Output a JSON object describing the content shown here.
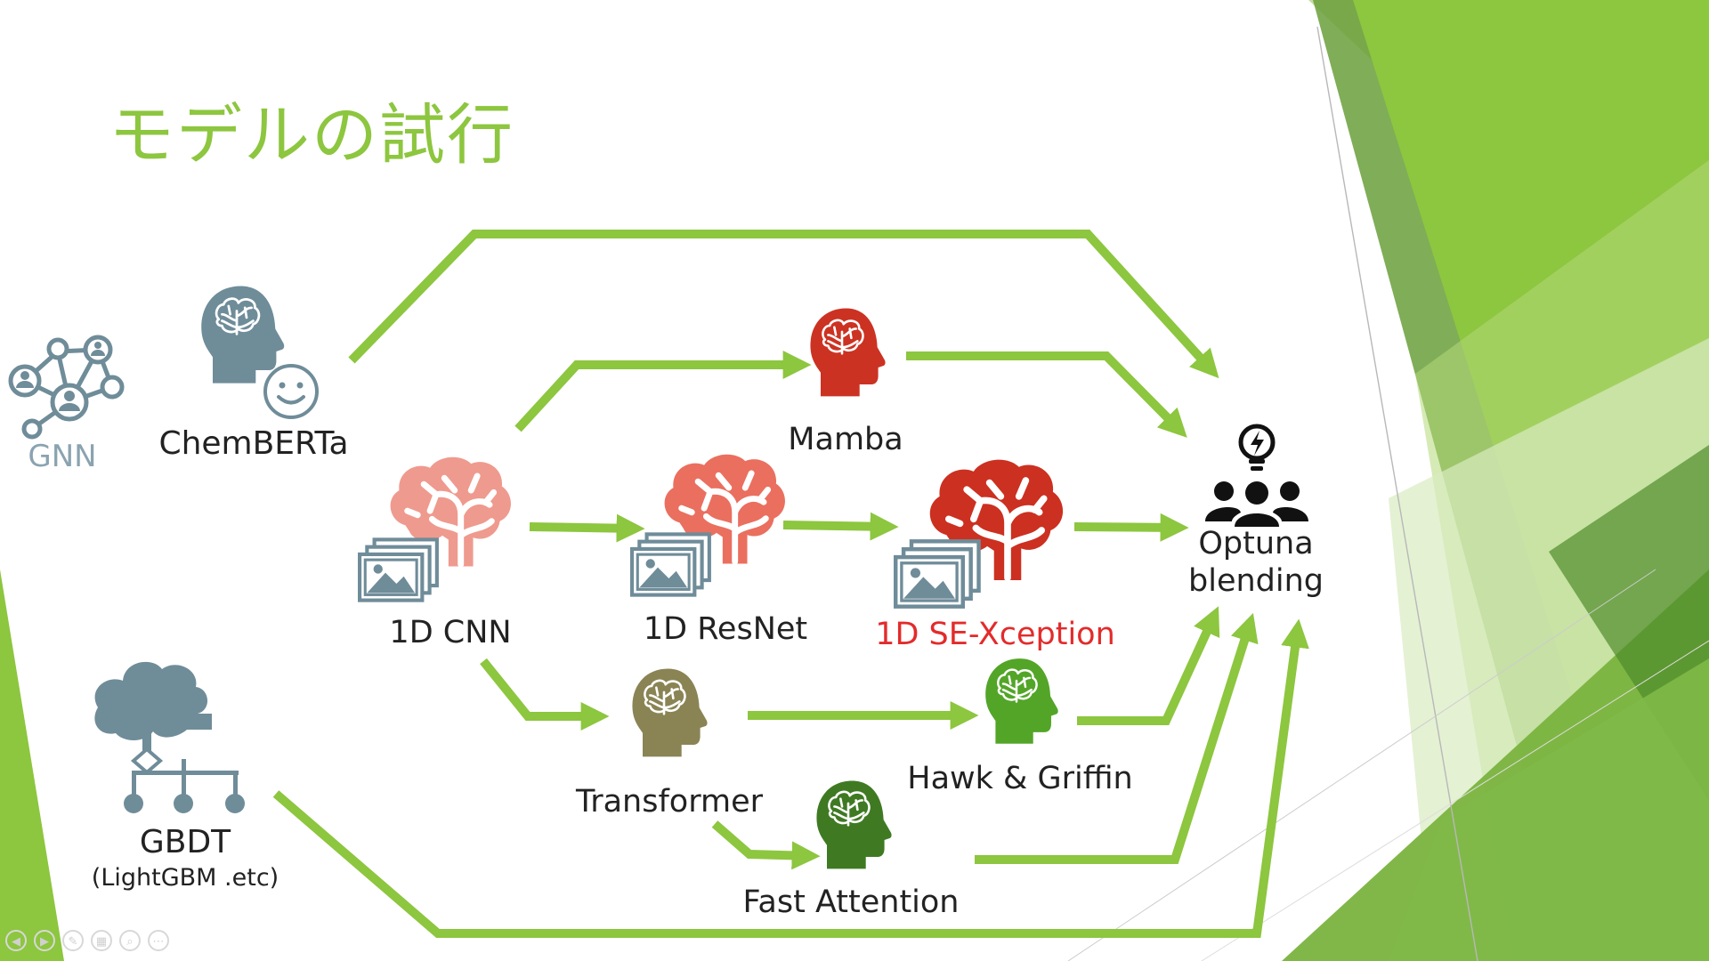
{
  "slide": {
    "title": "モデルの試行",
    "accent_color": "#8dc63f",
    "arrow_color": "#8dc63f"
  },
  "nodes": {
    "gnn": {
      "label": "GNN",
      "color": "#8ba3b0",
      "icon": "network-people-icon"
    },
    "chemberta": {
      "label": "ChemBERTa",
      "color": "#222222",
      "icon": "head-brain-smile-icon"
    },
    "gbdt": {
      "label": "GBDT",
      "sublabel": "(LightGBM .etc)",
      "color": "#222222",
      "icon": "decision-tree-icon"
    },
    "cnn1d": {
      "label": "1D CNN",
      "color": "#222222",
      "icon": "brain-images-icon"
    },
    "resnet1d": {
      "label": "1D ResNet",
      "color": "#222222",
      "icon": "brain-images-icon"
    },
    "sexception": {
      "label": "1D SE-Xception",
      "color": "#e32b2b",
      "icon": "brain-images-icon"
    },
    "mamba": {
      "label": "Mamba",
      "color": "#222222",
      "icon": "head-brain-icon"
    },
    "transformer": {
      "label": "Transformer",
      "color": "#222222",
      "icon": "head-brain-icon"
    },
    "hawk": {
      "label": "Hawk & Griffin",
      "color": "#222222",
      "icon": "head-brain-icon"
    },
    "fastattn": {
      "label": "Fast Attention",
      "color": "#222222",
      "icon": "head-brain-icon"
    },
    "optuna": {
      "label_line1": "Optuna",
      "label_line2": "blending",
      "color": "#222222",
      "icon": "team-idea-icon"
    }
  },
  "icon_colors": {
    "slate": "#6f8c99",
    "brain_light": "#ef9a8e",
    "brain_mid": "#ea6f5f",
    "brain_dark": "#cc3020",
    "mamba": "#cc3222",
    "transformer": "#8a8455",
    "hawk": "#53a528",
    "fastattn": "#3f7a23"
  },
  "nav_icons": [
    "prev-icon",
    "next-icon",
    "pen-icon",
    "slides-icon",
    "zoom-icon",
    "more-icon"
  ],
  "nav_glyphs": [
    "◀",
    "▶",
    "✎",
    "▦",
    "⌕",
    "⋯"
  ]
}
